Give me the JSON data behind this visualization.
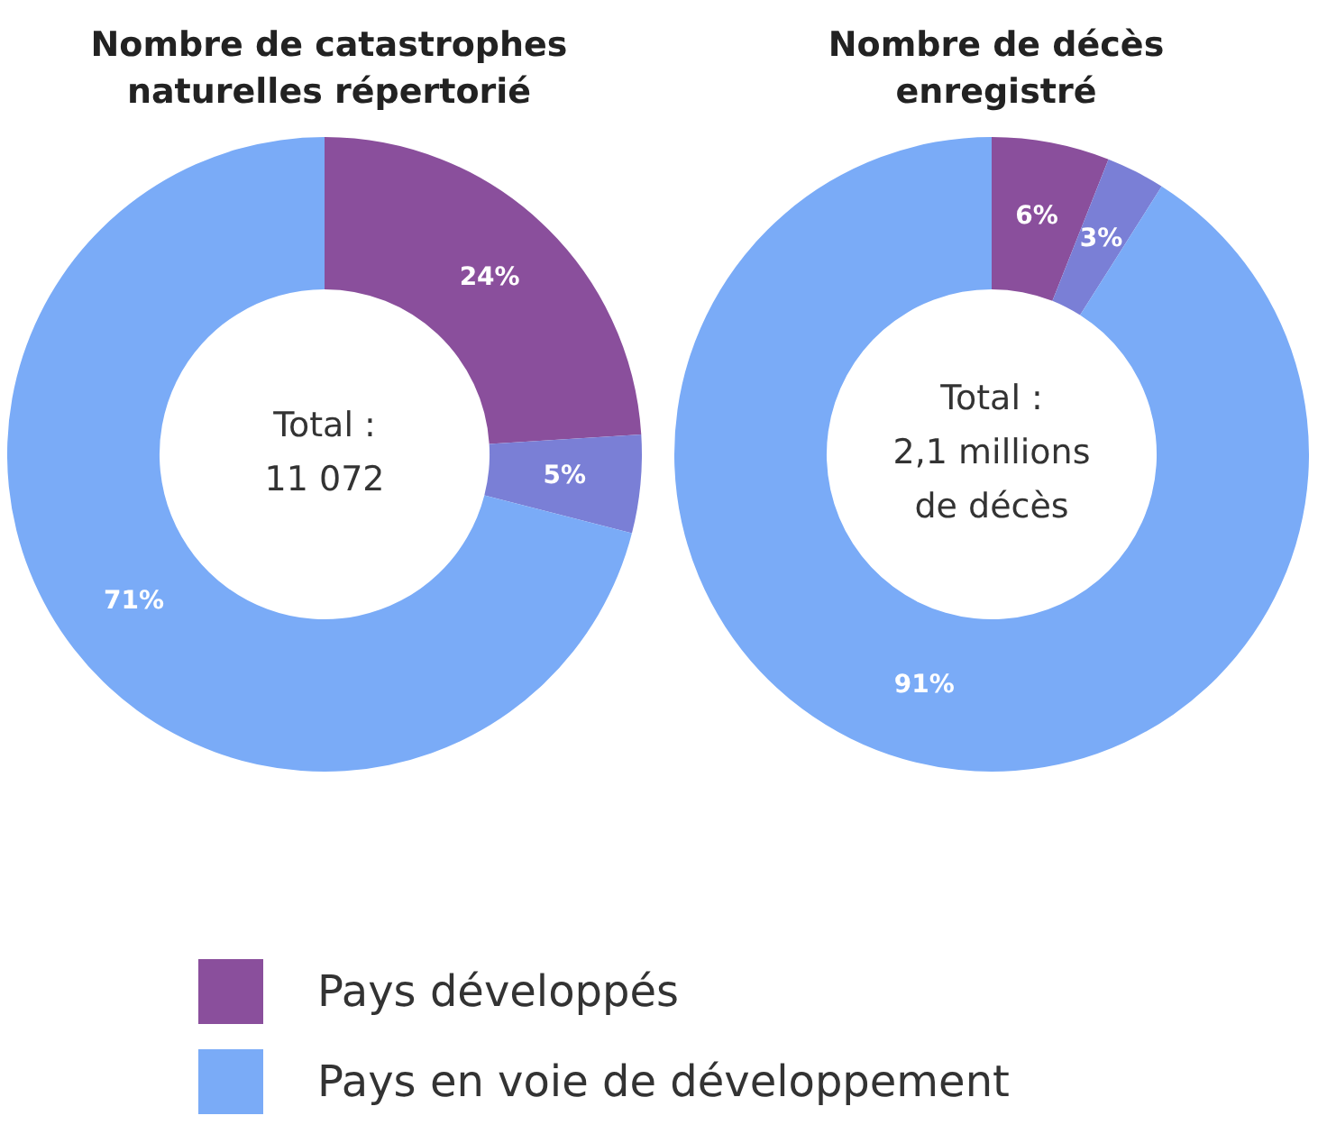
{
  "chart_data": [
    {
      "type": "donut",
      "title": "Nombre de catastrophes naturelles répertorié",
      "categories": [
        "Pays développés",
        null,
        "Pays en voie de développement"
      ],
      "values": [
        24,
        5,
        71
      ],
      "colors": [
        "#8a4f9c",
        "#7a7fd6",
        "#7aabf7"
      ],
      "value_labels": [
        "24%",
        "5%",
        "71%"
      ],
      "annotations": [
        "Total :",
        "11 072"
      ],
      "legend": "bottom"
    },
    {
      "type": "donut",
      "title": "Nombre de décès enregistré",
      "categories": [
        null,
        null,
        null
      ],
      "values": [
        6,
        3,
        91
      ],
      "colors": [
        "#8a4f9c",
        "#7a7fd6",
        "#7aabf7"
      ],
      "value_labels": [
        "6%",
        "3%",
        "91%"
      ],
      "annotations": [
        "Total :",
        "2,1 millions",
        "de décès"
      ]
    }
  ]
}
